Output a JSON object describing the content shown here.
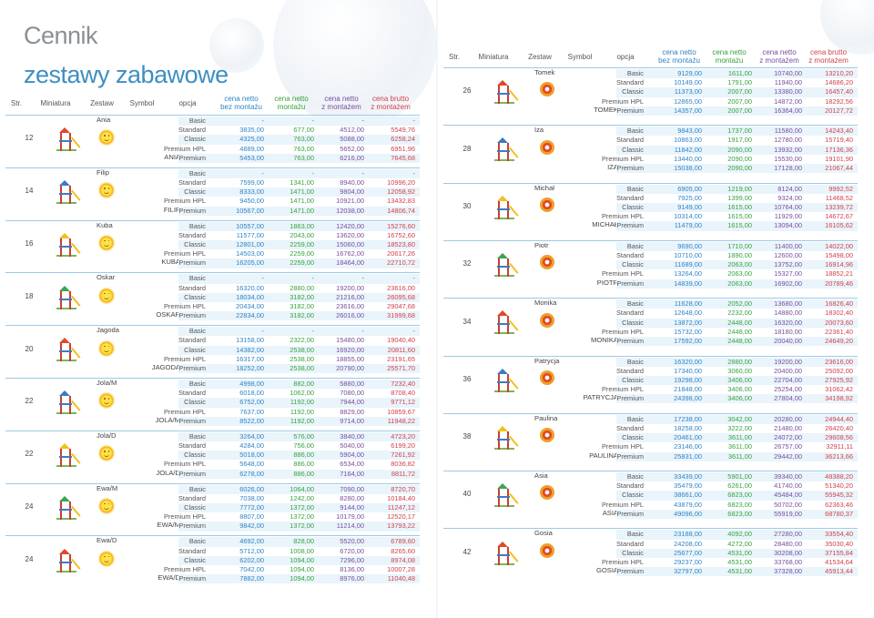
{
  "page_title": "Cennik",
  "page_subtitle": "zestawy zabawowe",
  "headers": {
    "str": "Str.",
    "miniatura": "Miniatura",
    "zestaw": "Zestaw",
    "symbol": "Symbol",
    "opcja": "opcja",
    "c1": [
      "cena netto",
      "bez montażu"
    ],
    "c2": [
      "cena netto",
      "montażu"
    ],
    "c3": [
      "cena netto",
      "z montażem"
    ],
    "c4": [
      "cena brutto",
      "z montażem"
    ]
  },
  "left_blocks": [
    {
      "str": "12",
      "name": "Ania",
      "symbol": "ANIA",
      "rows": [
        [
          "Basic",
          "-",
          "-",
          "-",
          "-"
        ],
        [
          "Standard",
          "3835,00",
          "677,00",
          "4512,00",
          "5549,76"
        ],
        [
          "Classic",
          "4325,00",
          "763,00",
          "5088,00",
          "6258,24"
        ],
        [
          "Premium HPL",
          "4889,00",
          "763,00",
          "5652,00",
          "6951,96"
        ],
        [
          "Premium",
          "5453,00",
          "763,00",
          "6216,00",
          "7645,68"
        ]
      ]
    },
    {
      "str": "14",
      "name": "Filip",
      "symbol": "FILIP",
      "rows": [
        [
          "Basic",
          "-",
          "-",
          "-",
          "-"
        ],
        [
          "Standard",
          "7599,00",
          "1341,00",
          "8940,00",
          "10996,20"
        ],
        [
          "Classic",
          "8333,00",
          "1471,00",
          "9804,00",
          "12058,92"
        ],
        [
          "Premium HPL",
          "9450,00",
          "1471,00",
          "10921,00",
          "13432,83"
        ],
        [
          "Premium",
          "10567,00",
          "1471,00",
          "12038,00",
          "14806,74"
        ]
      ]
    },
    {
      "str": "16",
      "name": "Kuba",
      "symbol": "KUBA",
      "rows": [
        [
          "Basic",
          "10557,00",
          "1863,00",
          "12420,00",
          "15276,60"
        ],
        [
          "Standard",
          "11577,00",
          "2043,00",
          "13620,00",
          "16752,60"
        ],
        [
          "Classic",
          "12801,00",
          "2259,00",
          "15060,00",
          "18523,80"
        ],
        [
          "Premium HPL",
          "14503,00",
          "2259,00",
          "16762,00",
          "20617,26"
        ],
        [
          "Premium",
          "16205,00",
          "2259,00",
          "18464,00",
          "22710,72"
        ]
      ]
    },
    {
      "str": "18",
      "name": "Oskar",
      "symbol": "OSKAR",
      "rows": [
        [
          "Basic",
          "-",
          "-",
          "-",
          "-"
        ],
        [
          "Standard",
          "16320,00",
          "2880,00",
          "19200,00",
          "23616,00"
        ],
        [
          "Classic",
          "18034,00",
          "3182,00",
          "21216,00",
          "26095,68"
        ],
        [
          "Premium HPL",
          "20434,00",
          "3182,00",
          "23616,00",
          "29047,68"
        ],
        [
          "Premium",
          "22834,00",
          "3182,00",
          "26016,00",
          "31999,68"
        ]
      ]
    },
    {
      "str": "20",
      "name": "Jagoda",
      "symbol": "JAGODA",
      "rows": [
        [
          "Basic",
          "-",
          "-",
          "-",
          "-"
        ],
        [
          "Standard",
          "13158,00",
          "2322,00",
          "15480,00",
          "19040,40"
        ],
        [
          "Classic",
          "14382,00",
          "2538,00",
          "16920,00",
          "20811,60"
        ],
        [
          "Premium HPL",
          "16317,00",
          "2538,00",
          "18855,00",
          "23191,65"
        ],
        [
          "Premium",
          "18252,00",
          "2538,00",
          "20790,00",
          "25571,70"
        ]
      ]
    },
    {
      "str": "22",
      "name": "Jola/M",
      "symbol": "JOLA/M",
      "rows": [
        [
          "Basic",
          "4998,00",
          "882,00",
          "5880,00",
          "7232,40"
        ],
        [
          "Standard",
          "6018,00",
          "1062,00",
          "7080,00",
          "8708,40"
        ],
        [
          "Classic",
          "6752,00",
          "1192,00",
          "7944,00",
          "9771,12"
        ],
        [
          "Premium HPL",
          "7637,00",
          "1192,00",
          "8829,00",
          "10859,67"
        ],
        [
          "Premium",
          "8522,00",
          "1192,00",
          "9714,00",
          "11948,22"
        ]
      ]
    },
    {
      "str": "22",
      "name": "Jola/D",
      "symbol": "JOLA/D",
      "rows": [
        [
          "Basic",
          "3264,00",
          "576,00",
          "3840,00",
          "4723,20"
        ],
        [
          "Standard",
          "4284,00",
          "756,00",
          "5040,00",
          "6199,20"
        ],
        [
          "Classic",
          "5018,00",
          "886,00",
          "5904,00",
          "7261,92"
        ],
        [
          "Premium HPL",
          "5648,00",
          "886,00",
          "6534,00",
          "8036,82"
        ],
        [
          "Premium",
          "6278,00",
          "886,00",
          "7164,00",
          "8811,72"
        ]
      ]
    },
    {
      "str": "24",
      "name": "Ewa/M",
      "symbol": "EWA/M",
      "rows": [
        [
          "Basic",
          "6026,00",
          "1064,00",
          "7090,00",
          "8720,70"
        ],
        [
          "Standard",
          "7038,00",
          "1242,00",
          "8280,00",
          "10184,40"
        ],
        [
          "Classic",
          "7772,00",
          "1372,00",
          "9144,00",
          "11247,12"
        ],
        [
          "Premium HPL",
          "8807,00",
          "1372,00",
          "10179,00",
          "12520,17"
        ],
        [
          "Premium",
          "9842,00",
          "1372,00",
          "11214,00",
          "13793,22"
        ]
      ]
    },
    {
      "str": "24",
      "name": "Ewa/D",
      "symbol": "EWA/D",
      "rows": [
        [
          "Basic",
          "4692,00",
          "828,00",
          "5520,00",
          "6789,60"
        ],
        [
          "Standard",
          "5712,00",
          "1008,00",
          "6720,00",
          "8265,60"
        ],
        [
          "Classic",
          "6202,00",
          "1094,00",
          "7296,00",
          "8974,08"
        ],
        [
          "Premium HPL",
          "7042,00",
          "1094,00",
          "8136,00",
          "10007,28"
        ],
        [
          "Premium",
          "7882,00",
          "1094,00",
          "8976,00",
          "11040,48"
        ]
      ]
    }
  ],
  "right_blocks": [
    {
      "str": "26",
      "name": "Tomek",
      "symbol": "TOMEK",
      "rows": [
        [
          "Basic",
          "9129,00",
          "1611,00",
          "10740,00",
          "13210,20"
        ],
        [
          "Standard",
          "10149,00",
          "1791,00",
          "11940,00",
          "14686,20"
        ],
        [
          "Classic",
          "11373,00",
          "2007,00",
          "13380,00",
          "16457,40"
        ],
        [
          "Premium HPL",
          "12865,00",
          "2007,00",
          "14872,00",
          "18292,56"
        ],
        [
          "Premium",
          "14357,00",
          "2007,00",
          "16364,00",
          "20127,72"
        ]
      ]
    },
    {
      "str": "28",
      "name": "Iza",
      "symbol": "IZA",
      "rows": [
        [
          "Basic",
          "9843,00",
          "1737,00",
          "11580,00",
          "14243,40"
        ],
        [
          "Standard",
          "10863,00",
          "1917,00",
          "12780,00",
          "15719,40"
        ],
        [
          "Classic",
          "11842,00",
          "2090,00",
          "13932,00",
          "17136,36"
        ],
        [
          "Premium HPL",
          "13440,00",
          "2090,00",
          "15530,00",
          "19101,90"
        ],
        [
          "Premium",
          "15038,00",
          "2090,00",
          "17128,00",
          "21067,44"
        ]
      ]
    },
    {
      "str": "30",
      "name": "Michał",
      "symbol": "MICHAŁ",
      "rows": [
        [
          "Basic",
          "6905,00",
          "1219,00",
          "8124,00",
          "9992,52"
        ],
        [
          "Standard",
          "7925,00",
          "1399,00",
          "9324,00",
          "11468,52"
        ],
        [
          "Classic",
          "9149,00",
          "1615,00",
          "10764,00",
          "13239,72"
        ],
        [
          "Premium HPL",
          "10314,00",
          "1615,00",
          "11929,00",
          "14672,67"
        ],
        [
          "Premium",
          "11479,00",
          "1615,00",
          "13094,00",
          "16105,62"
        ]
      ]
    },
    {
      "str": "32",
      "name": "Piotr",
      "symbol": "PIOTR",
      "rows": [
        [
          "Basic",
          "9690,00",
          "1710,00",
          "11400,00",
          "14022,00"
        ],
        [
          "Standard",
          "10710,00",
          "1890,00",
          "12600,00",
          "15498,00"
        ],
        [
          "Classic",
          "11689,00",
          "2063,00",
          "13752,00",
          "16914,96"
        ],
        [
          "Premium HPL",
          "13264,00",
          "2063,00",
          "15327,00",
          "18852,21"
        ],
        [
          "Premium",
          "14839,00",
          "2063,00",
          "16902,00",
          "20789,46"
        ]
      ]
    },
    {
      "str": "34",
      "name": "Monika",
      "symbol": "MONIKA",
      "rows": [
        [
          "Basic",
          "11628,00",
          "2052,00",
          "13680,00",
          "16826,40"
        ],
        [
          "Standard",
          "12648,00",
          "2232,00",
          "14880,00",
          "18302,40"
        ],
        [
          "Classic",
          "13872,00",
          "2448,00",
          "16320,00",
          "20073,60"
        ],
        [
          "Premium HPL",
          "15732,00",
          "2448,00",
          "18180,00",
          "22361,40"
        ],
        [
          "Premium",
          "17592,00",
          "2448,00",
          "20040,00",
          "24649,20"
        ]
      ]
    },
    {
      "str": "36",
      "name": "Patrycja",
      "symbol": "PATRYCJA",
      "rows": [
        [
          "Basic",
          "16320,00",
          "2880,00",
          "19200,00",
          "23616,00"
        ],
        [
          "Standard",
          "17340,00",
          "3060,00",
          "20400,00",
          "25092,00"
        ],
        [
          "Classic",
          "19298,00",
          "3406,00",
          "22704,00",
          "27925,92"
        ],
        [
          "Premium HPL",
          "21848,00",
          "3406,00",
          "25254,00",
          "31062,42"
        ],
        [
          "Premium",
          "24398,00",
          "3406,00",
          "27804,00",
          "34198,92"
        ]
      ]
    },
    {
      "str": "38",
      "name": "Paulina",
      "symbol": "PAULINA",
      "rows": [
        [
          "Basic",
          "17238,00",
          "3042,00",
          "20280,00",
          "24944,40"
        ],
        [
          "Standard",
          "18258,00",
          "3222,00",
          "21480,00",
          "26420,40"
        ],
        [
          "Classic",
          "20461,00",
          "3611,00",
          "24072,00",
          "29608,56"
        ],
        [
          "Premium HPL",
          "23146,00",
          "3611,00",
          "26757,00",
          "32911,11"
        ],
        [
          "Premium",
          "25831,00",
          "3611,00",
          "29442,00",
          "36213,66"
        ]
      ]
    },
    {
      "str": "40",
      "name": "Asia",
      "symbol": "ASIA",
      "rows": [
        [
          "Basic",
          "33439,00",
          "5901,00",
          "39340,00",
          "48388,20"
        ],
        [
          "Standard",
          "35479,00",
          "6261,00",
          "41740,00",
          "51340,20"
        ],
        [
          "Classic",
          "38661,00",
          "6823,00",
          "45484,00",
          "55945,32"
        ],
        [
          "Premium HPL",
          "43879,00",
          "6823,00",
          "50702,00",
          "62363,46"
        ],
        [
          "Premium",
          "49096,00",
          "6823,00",
          "55919,00",
          "68780,37"
        ]
      ]
    },
    {
      "str": "42",
      "name": "Gosia",
      "symbol": "GOSIA",
      "rows": [
        [
          "Basic",
          "23188,00",
          "4092,00",
          "27280,00",
          "33554,40"
        ],
        [
          "Standard",
          "24208,00",
          "4272,00",
          "28480,00",
          "35030,40"
        ],
        [
          "Classic",
          "25677,00",
          "4531,00",
          "30208,00",
          "37155,84"
        ],
        [
          "Premium HPL",
          "29237,00",
          "4531,00",
          "33768,00",
          "41534,64"
        ],
        [
          "Premium",
          "32797,00",
          "4531,00",
          "37328,00",
          "45913,44"
        ]
      ]
    }
  ]
}
